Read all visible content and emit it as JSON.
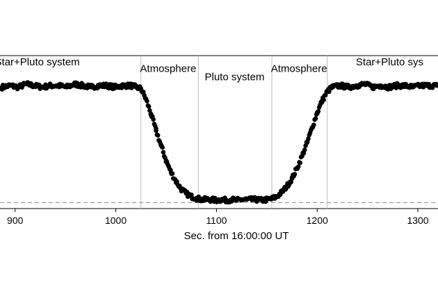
{
  "chart_data": {
    "type": "scatter",
    "xlabel": "Sec. from 16:00:00 UT",
    "xlim": [
      885,
      1320
    ],
    "xticks": [
      900,
      1000,
      1100,
      1200,
      1300
    ],
    "ylim": [
      0.18,
      1.2
    ],
    "baseline": 0.22,
    "region_boundaries": [
      1025,
      1082,
      1155,
      1210
    ],
    "annotations": [
      {
        "text": "Star+Pluto system",
        "x": 922,
        "y": 1.135
      },
      {
        "text": "Atmosphere",
        "x": 1052,
        "y": 1.09
      },
      {
        "text": "Pluto system",
        "x": 1118,
        "y": 1.035
      },
      {
        "text": "Atmosphere",
        "x": 1182,
        "y": 1.09
      },
      {
        "text": "Star+Pluto sys",
        "x": 1272,
        "y": 1.135
      }
    ],
    "series": [
      {
        "values_x": [
          887,
          895,
          903,
          911,
          919,
          927,
          935,
          943,
          951,
          959,
          967,
          975,
          983,
          991,
          999,
          1007,
          1015,
          1020,
          1025,
          1030,
          1035,
          1040,
          1045,
          1050,
          1055,
          1060,
          1065,
          1070,
          1075,
          1080,
          1085,
          1090,
          1095,
          1100,
          1105,
          1110,
          1115,
          1120,
          1125,
          1130,
          1135,
          1140,
          1145,
          1150,
          1155,
          1160,
          1165,
          1170,
          1175,
          1180,
          1185,
          1190,
          1195,
          1200,
          1205,
          1210,
          1215,
          1223,
          1231,
          1239,
          1247,
          1255,
          1263,
          1271,
          1279,
          1287,
          1295,
          1303,
          1311,
          1319
        ],
        "values_y": [
          0.99,
          1.0,
          0.99,
          1.01,
          1.0,
          0.99,
          1.0,
          1.0,
          0.99,
          1.01,
          1.0,
          0.99,
          1.0,
          1.0,
          0.99,
          1.0,
          1.0,
          0.99,
          0.98,
          0.91,
          0.81,
          0.7,
          0.6,
          0.5,
          0.42,
          0.36,
          0.31,
          0.28,
          0.26,
          0.25,
          0.24,
          0.24,
          0.24,
          0.235,
          0.24,
          0.235,
          0.24,
          0.235,
          0.24,
          0.24,
          0.24,
          0.24,
          0.235,
          0.24,
          0.245,
          0.26,
          0.29,
          0.33,
          0.38,
          0.45,
          0.53,
          0.62,
          0.72,
          0.82,
          0.9,
          0.96,
          0.99,
          1.0,
          0.99,
          1.0,
          1.01,
          0.99,
          1.0,
          0.99,
          1.0,
          1.0,
          0.99,
          1.0,
          1.0,
          1.0
        ]
      }
    ]
  }
}
